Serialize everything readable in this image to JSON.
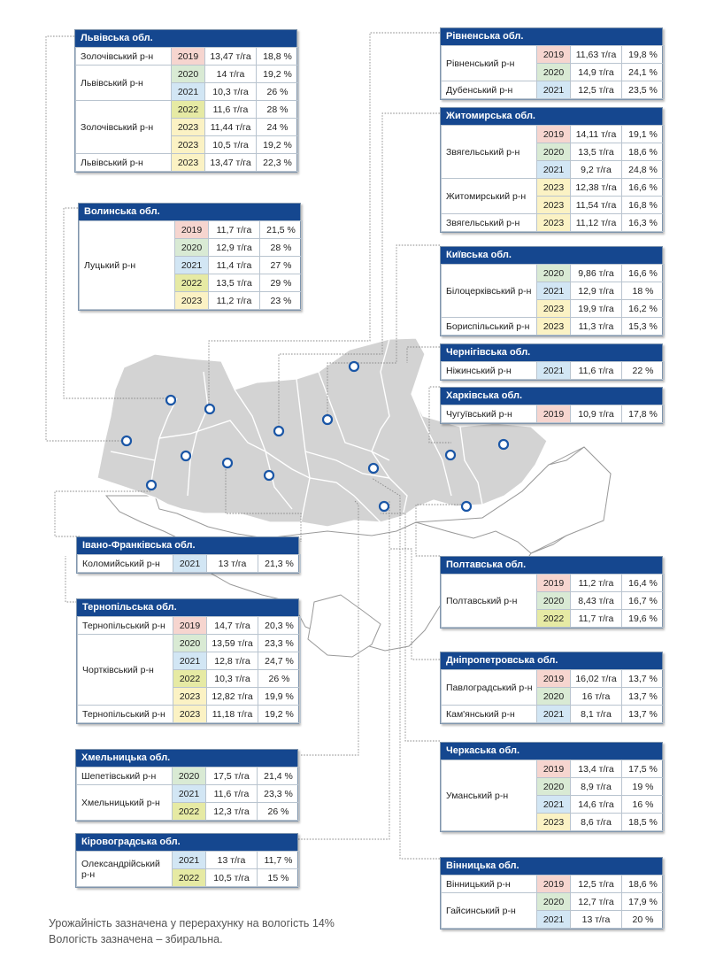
{
  "cards": [
    {
      "id": "lviv",
      "title": "Львівська обл.",
      "rows": [
        {
          "district": "Золочівський р-н",
          "span": 1,
          "year": "2019",
          "yield": "13,47 т/га",
          "moisture": "18,8 %"
        },
        {
          "district": "Львівський р-н",
          "span": 2,
          "year": "2020",
          "yield": "14 т/га",
          "moisture": "19,2 %"
        },
        {
          "year": "2021",
          "yield": "10,3 т/га",
          "moisture": "26 %"
        },
        {
          "district": "Золочівський р-н",
          "span": 3,
          "year": "2022",
          "yield": "11,6 т/га",
          "moisture": "28 %"
        },
        {
          "year": "2023",
          "yield": "11,44 т/га",
          "moisture": "24 %"
        },
        {
          "year": "2023",
          "yield": "10,5 т/га",
          "moisture": "19,2 %"
        },
        {
          "district": "Львівський р-н",
          "span": 1,
          "year": "2023",
          "yield": "13,47 т/га",
          "moisture": "22,3 %"
        }
      ]
    },
    {
      "id": "volyn",
      "title": "Волинська обл.",
      "rows": [
        {
          "district": "Луцький р-н",
          "span": 5,
          "year": "2019",
          "yield": "11,7 т/га",
          "moisture": "21,5 %"
        },
        {
          "year": "2020",
          "yield": "12,9 т/га",
          "moisture": "28 %"
        },
        {
          "year": "2021",
          "yield": "11,4 т/га",
          "moisture": "27 %"
        },
        {
          "year": "2022",
          "yield": "13,5 т/га",
          "moisture": "29 %"
        },
        {
          "year": "2023",
          "yield": "11,2 т/га",
          "moisture": "23 %"
        }
      ]
    },
    {
      "id": "rivne",
      "title": "Рівненська обл.",
      "rows": [
        {
          "district": "Рівненський р-н",
          "span": 2,
          "year": "2019",
          "yield": "11,63 т/га",
          "moisture": "19,8 %"
        },
        {
          "year": "2020",
          "yield": "14,9 т/га",
          "moisture": "24,1 %"
        },
        {
          "district": "Дубенський р-н",
          "span": 1,
          "year": "2021",
          "yield": "12,5 т/га",
          "moisture": "23,5 %"
        }
      ]
    },
    {
      "id": "zhytomyr",
      "title": "Житомирська обл.",
      "rows": [
        {
          "district": "Звягельський р-н",
          "span": 3,
          "year": "2019",
          "yield": "14,11 т/га",
          "moisture": "19,1 %"
        },
        {
          "year": "2020",
          "yield": "13,5 т/га",
          "moisture": "18,6 %"
        },
        {
          "year": "2021",
          "yield": "9,2 т/га",
          "moisture": "24,8 %"
        },
        {
          "district": "Житомирський р-н",
          "span": 2,
          "year": "2023",
          "yield": "12,38 т/га",
          "moisture": "16,6 %"
        },
        {
          "year": "2023",
          "yield": "11,54 т/га",
          "moisture": "16,8 %"
        },
        {
          "district": "Звягельський р-н",
          "span": 1,
          "year": "2023",
          "yield": "11,12 т/га",
          "moisture": "16,3 %"
        }
      ]
    },
    {
      "id": "kyiv",
      "title": "Київська обл.",
      "rows": [
        {
          "district": "Білоцерківський р-н",
          "span": 3,
          "year": "2020",
          "yield": "9,86 т/га",
          "moisture": "16,6 %"
        },
        {
          "year": "2021",
          "yield": "12,9 т/га",
          "moisture": "18 %"
        },
        {
          "year": "2023",
          "yield": "19,9 т/га",
          "moisture": "16,2 %"
        },
        {
          "district": "Бориспільський р-н",
          "span": 1,
          "year": "2023",
          "yield": "11,3 т/га",
          "moisture": "15,3 %"
        }
      ]
    },
    {
      "id": "chernihiv",
      "title": "Чернігівська обл.",
      "rows": [
        {
          "district": "Ніжинський р-н",
          "span": 1,
          "year": "2021",
          "yield": "11,6 т/га",
          "moisture": "22 %"
        }
      ]
    },
    {
      "id": "kharkiv",
      "title": "Харківська обл.",
      "rows": [
        {
          "district": "Чугуївський р-н",
          "span": 1,
          "year": "2019",
          "yield": "10,9 т/га",
          "moisture": "17,8 %"
        }
      ]
    },
    {
      "id": "ivano",
      "title": "Івано-Франківська обл.",
      "rows": [
        {
          "district": "Коломийський р-н",
          "span": 1,
          "year": "2021",
          "yield": "13 т/га",
          "moisture": "21,3 %"
        }
      ]
    },
    {
      "id": "ternopil",
      "title": "Тернопільська обл.",
      "rows": [
        {
          "district": "Тернопільський р-н",
          "span": 1,
          "year": "2019",
          "yield": "14,7 т/га",
          "moisture": "20,3 %"
        },
        {
          "district": "Чортківський р-н",
          "span": 4,
          "year": "2020",
          "yield": "13,59 т/га",
          "moisture": "23,3 %"
        },
        {
          "year": "2021",
          "yield": "12,8 т/га",
          "moisture": "24,7 %"
        },
        {
          "year": "2022",
          "yield": "10,3 т/га",
          "moisture": "26 %"
        },
        {
          "year": "2023",
          "yield": "12,82 т/га",
          "moisture": "19,9 %"
        },
        {
          "district": "Тернопільський р-н",
          "span": 1,
          "year": "2023",
          "yield": "11,18 т/га",
          "moisture": "19,2 %"
        }
      ]
    },
    {
      "id": "poltava",
      "title": "Полтавська обл.",
      "rows": [
        {
          "district": "Полтавський р-н",
          "span": 3,
          "year": "2019",
          "yield": "11,2 т/га",
          "moisture": "16,4 %"
        },
        {
          "year": "2020",
          "yield": "8,43 т/га",
          "moisture": "16,7 %"
        },
        {
          "year": "2022",
          "yield": "11,7 т/га",
          "moisture": "19,6 %"
        }
      ]
    },
    {
      "id": "dnipro",
      "title": "Дніпропетровська обл.",
      "rows": [
        {
          "district": "Павлоградський р-н",
          "span": 2,
          "year": "2019",
          "yield": "16,02 т/га",
          "moisture": "13,7 %"
        },
        {
          "year": "2020",
          "yield": "16 т/га",
          "moisture": "13,7 %"
        },
        {
          "district": "Кам'янський р-н",
          "span": 1,
          "year": "2021",
          "yield": "8,1 т/га",
          "moisture": "13,7 %"
        }
      ]
    },
    {
      "id": "khmelnytskyi",
      "title": "Хмельницька обл.",
      "rows": [
        {
          "district": "Шепетівський р-н",
          "span": 1,
          "year": "2020",
          "yield": "17,5 т/га",
          "moisture": "21,4 %"
        },
        {
          "district": "Хмельницький р-н",
          "span": 2,
          "year": "2021",
          "yield": "11,6 т/га",
          "moisture": "23,3 %"
        },
        {
          "year": "2022",
          "yield": "12,3 т/га",
          "moisture": "26 %"
        }
      ]
    },
    {
      "id": "cherkasy",
      "title": "Черкаська обл.",
      "rows": [
        {
          "district": "Уманський р-н",
          "span": 4,
          "year": "2019",
          "yield": "13,4 т/га",
          "moisture": "17,5 %"
        },
        {
          "year": "2020",
          "yield": "8,9 т/га",
          "moisture": "19 %"
        },
        {
          "year": "2021",
          "yield": "14,6 т/га",
          "moisture": "16 %"
        },
        {
          "year": "2023",
          "yield": "8,6 т/га",
          "moisture": "18,5 %"
        }
      ]
    },
    {
      "id": "kirovohrad",
      "title": "Кіровоградська обл.",
      "rows": [
        {
          "district": "Олександрійський р-н",
          "span": 2,
          "year": "2021",
          "yield": "13 т/га",
          "moisture": "11,7 %"
        },
        {
          "year": "2022",
          "yield": "10,5 т/га",
          "moisture": "15 %"
        }
      ]
    },
    {
      "id": "vinnytsia",
      "title": "Вінницька обл.",
      "rows": [
        {
          "district": "Вінницький р-н",
          "span": 1,
          "year": "2019",
          "yield": "12,5 т/га",
          "moisture": "18,6 %"
        },
        {
          "district": "Гайсинський р-н",
          "span": 2,
          "year": "2020",
          "yield": "12,7 т/га",
          "moisture": "17,9 %"
        },
        {
          "year": "2021",
          "yield": "13 т/га",
          "moisture": "20 %"
        }
      ]
    }
  ],
  "note": {
    "line1": "Урожайність зазначена у перерахунку на вологість 14%",
    "line2": "Вологість зазначена – збиральна."
  },
  "colors": {
    "header": "#15478f",
    "map_region": "#d3d3d3",
    "map_background_region": "#ffffff",
    "marker": "#1a56a6",
    "year_2019": "#f6d5cf",
    "year_2020": "#d9ead4",
    "year_2021": "#d2e6f4",
    "year_2022": "#e6eaa4",
    "year_2023": "#fbf2c4"
  }
}
